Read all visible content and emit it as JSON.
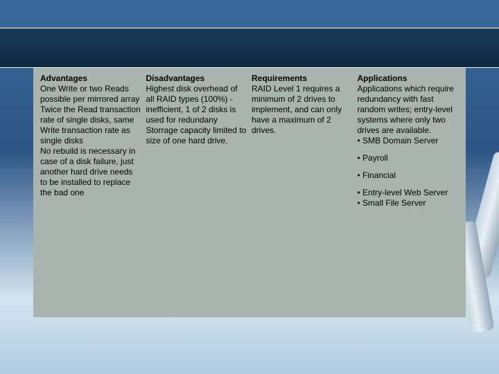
{
  "columns": [
    {
      "heading": "Advantages",
      "body": "One Write or two Reads possible per mirrored array\nTwice the Read transaction rate of single disks, same Write transaction rate as single disks\nNo rebuild is necessary in case of a disk failure, just another hard drive needs to be installed to replace the bad one",
      "bullets": []
    },
    {
      "heading": "Disadvantages",
      "body": "Highest disk overhead of all RAID types (100%) - inefficient, 1 of 2 disks is used for redundany\nStorrage capacity limited to size of one hard drive.",
      "bullets": []
    },
    {
      "heading": "Requirements",
      "body": "RAID Level 1 requires a minimum of 2 drives to implement, and can only have a maximum of 2 drives.",
      "bullets": []
    },
    {
      "heading": "Applications",
      "body": "Applications which require redundancy with fast random writes; entry-level systems where only two drives are available.\n• SMB Domain Server",
      "bullets": [
        "• Payroll",
        "• Financial",
        "• Entry-level Web Server\n• Small File Server"
      ]
    }
  ],
  "colors": {
    "content_bg": "#a9b4af",
    "header_band": "#14324c",
    "text": "#000000"
  }
}
